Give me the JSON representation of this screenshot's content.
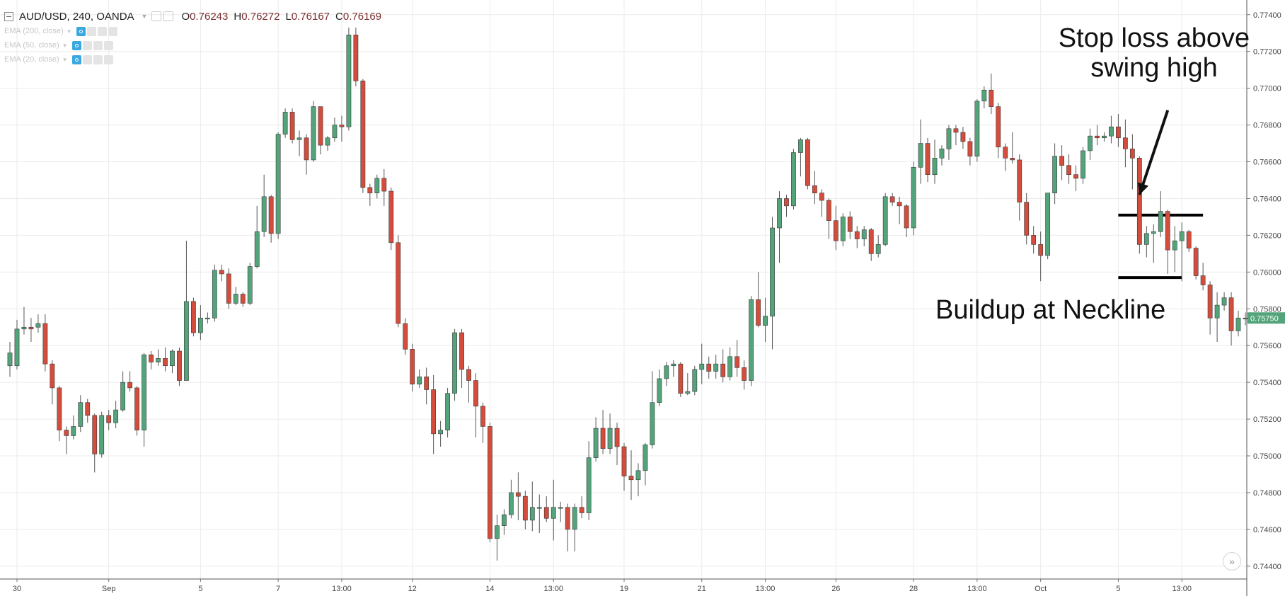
{
  "header": {
    "symbol": "AUD/USD, 240, OANDA",
    "open_label": "O",
    "open": "0.76243",
    "high_label": "H",
    "high": "0.76272",
    "low_label": "L",
    "low": "0.76167",
    "close_label": "C",
    "close": "0.76169"
  },
  "studies": [
    {
      "label": "EMA (200, close)"
    },
    {
      "label": "EMA (50, close)"
    },
    {
      "label": "EMA (20, close)"
    }
  ],
  "annotations": {
    "stop_loss": "Stop loss above swing high",
    "buildup": "Buildup at Neckline"
  },
  "price_badge": "0.75750",
  "scroll_button": "»",
  "colors": {
    "up": "#53a47b",
    "down": "#d34c3c",
    "wick": "#555555",
    "grid": "#ebebeb",
    "badge": "#53a47b"
  },
  "chart_data": {
    "type": "candlestick",
    "title": "AUD/USD, 240, OANDA",
    "xlabel": "",
    "ylabel": "",
    "ylim": [
      0.7433,
      0.7748
    ],
    "y_ticks": [
      "0.77400",
      "0.77200",
      "0.77000",
      "0.76800",
      "0.76600",
      "0.76400",
      "0.76200",
      "0.76000",
      "0.75800",
      "0.75600",
      "0.75400",
      "0.75200",
      "0.75000",
      "0.74800",
      "0.74600",
      "0.74400"
    ],
    "x_ticks": [
      {
        "label": "30",
        "index": 1
      },
      {
        "label": "Sep",
        "index": 14
      },
      {
        "label": "5",
        "index": 27
      },
      {
        "label": "7",
        "index": 38
      },
      {
        "label": "13:00",
        "index": 47
      },
      {
        "label": "12",
        "index": 57
      },
      {
        "label": "14",
        "index": 68
      },
      {
        "label": "13:00",
        "index": 77
      },
      {
        "label": "19",
        "index": 87
      },
      {
        "label": "21",
        "index": 98
      },
      {
        "label": "13:00",
        "index": 107
      },
      {
        "label": "26",
        "index": 117
      },
      {
        "label": "28",
        "index": 128
      },
      {
        "label": "13:00",
        "index": 137
      },
      {
        "label": "Oct",
        "index": 146
      },
      {
        "label": "5",
        "index": 157
      },
      {
        "label": "13:00",
        "index": 166
      }
    ],
    "grid": true,
    "levels": [
      {
        "value": 0.7631,
        "from_index": 157,
        "to_index": 169
      },
      {
        "value": 0.7597,
        "from_index": 157,
        "to_index": 166
      }
    ],
    "arrow": {
      "from_index": 164,
      "from_value": 0.7688,
      "to_index": 160,
      "to_value": 0.7642
    },
    "last_price": 0.7575,
    "candles": [
      [
        0.7549,
        0.7556,
        0.7543,
        0.7562
      ],
      [
        0.7549,
        0.7569,
        0.7547,
        0.7574
      ],
      [
        0.7569,
        0.757,
        0.7566,
        0.7581
      ],
      [
        0.757,
        0.7569,
        0.7562,
        0.7575
      ],
      [
        0.757,
        0.7572,
        0.7567,
        0.7577
      ],
      [
        0.7572,
        0.755,
        0.7546,
        0.7577
      ],
      [
        0.755,
        0.7537,
        0.7528,
        0.7552
      ],
      [
        0.7537,
        0.7514,
        0.7508,
        0.7538
      ],
      [
        0.7514,
        0.7511,
        0.7501,
        0.7516
      ],
      [
        0.7511,
        0.7516,
        0.7509,
        0.7522
      ],
      [
        0.7516,
        0.7529,
        0.7513,
        0.7533
      ],
      [
        0.7529,
        0.7522,
        0.7518,
        0.7531
      ],
      [
        0.7522,
        0.7501,
        0.7491,
        0.7523
      ],
      [
        0.7501,
        0.7522,
        0.7499,
        0.7524
      ],
      [
        0.7522,
        0.7518,
        0.7514,
        0.7525
      ],
      [
        0.7518,
        0.7525,
        0.7515,
        0.753
      ],
      [
        0.7525,
        0.754,
        0.7524,
        0.7546
      ],
      [
        0.754,
        0.7537,
        0.7535,
        0.7546
      ],
      [
        0.7537,
        0.7514,
        0.7511,
        0.7538
      ],
      [
        0.7514,
        0.7555,
        0.7505,
        0.7556
      ],
      [
        0.7555,
        0.7551,
        0.7547,
        0.7557
      ],
      [
        0.7551,
        0.7553,
        0.7549,
        0.7558
      ],
      [
        0.7553,
        0.7549,
        0.7546,
        0.7559
      ],
      [
        0.7549,
        0.7557,
        0.7545,
        0.7558
      ],
      [
        0.7557,
        0.7541,
        0.7538,
        0.7559
      ],
      [
        0.7541,
        0.7584,
        0.7541,
        0.7617
      ],
      [
        0.7584,
        0.7567,
        0.7565,
        0.7586
      ],
      [
        0.7567,
        0.7575,
        0.7563,
        0.7582
      ],
      [
        0.7575,
        0.7575,
        0.7572,
        0.7578
      ],
      [
        0.7575,
        0.7601,
        0.7573,
        0.7604
      ],
      [
        0.7601,
        0.7599,
        0.7595,
        0.7604
      ],
      [
        0.7599,
        0.7583,
        0.758,
        0.7602
      ],
      [
        0.7583,
        0.7588,
        0.7582,
        0.7592
      ],
      [
        0.7588,
        0.7583,
        0.7581,
        0.7589
      ],
      [
        0.7583,
        0.7603,
        0.7582,
        0.7605
      ],
      [
        0.7603,
        0.7622,
        0.7602,
        0.7636
      ],
      [
        0.7622,
        0.7641,
        0.7619,
        0.7653
      ],
      [
        0.7641,
        0.7621,
        0.7616,
        0.7642
      ],
      [
        0.7621,
        0.7675,
        0.7618,
        0.7676
      ],
      [
        0.7675,
        0.7687,
        0.7673,
        0.7689
      ],
      [
        0.7687,
        0.7672,
        0.767,
        0.7689
      ],
      [
        0.7672,
        0.7673,
        0.7663,
        0.7677
      ],
      [
        0.7673,
        0.7661,
        0.7653,
        0.7675
      ],
      [
        0.7661,
        0.769,
        0.766,
        0.7693
      ],
      [
        0.769,
        0.7669,
        0.7664,
        0.7689
      ],
      [
        0.7669,
        0.7673,
        0.7666,
        0.7674
      ],
      [
        0.7673,
        0.768,
        0.7671,
        0.7684
      ],
      [
        0.768,
        0.7679,
        0.7671,
        0.7685
      ],
      [
        0.7679,
        0.7729,
        0.7677,
        0.7733
      ],
      [
        0.7729,
        0.7704,
        0.7701,
        0.7733
      ],
      [
        0.7704,
        0.7646,
        0.7643,
        0.7705
      ],
      [
        0.7646,
        0.7643,
        0.7636,
        0.7648
      ],
      [
        0.7643,
        0.7651,
        0.764,
        0.7653
      ],
      [
        0.7651,
        0.7644,
        0.7636,
        0.7656
      ],
      [
        0.7644,
        0.7616,
        0.7612,
        0.7646
      ],
      [
        0.7616,
        0.7572,
        0.757,
        0.762
      ],
      [
        0.7572,
        0.7558,
        0.7555,
        0.7575
      ],
      [
        0.7558,
        0.7539,
        0.7535,
        0.7561
      ],
      [
        0.7539,
        0.7543,
        0.7537,
        0.7547
      ],
      [
        0.7543,
        0.7536,
        0.7528,
        0.7548
      ],
      [
        0.7536,
        0.7512,
        0.7501,
        0.7544
      ],
      [
        0.7512,
        0.7514,
        0.7505,
        0.7519
      ],
      [
        0.7514,
        0.7534,
        0.751,
        0.7537
      ],
      [
        0.7534,
        0.7567,
        0.753,
        0.7569
      ],
      [
        0.7567,
        0.7547,
        0.7537,
        0.7569
      ],
      [
        0.7547,
        0.7541,
        0.7529,
        0.7549
      ],
      [
        0.7541,
        0.7527,
        0.751,
        0.7545
      ],
      [
        0.7527,
        0.7516,
        0.7507,
        0.7529
      ],
      [
        0.7516,
        0.7455,
        0.7453,
        0.7518
      ],
      [
        0.7455,
        0.7462,
        0.7443,
        0.7468
      ],
      [
        0.7462,
        0.7468,
        0.7457,
        0.7471
      ],
      [
        0.7468,
        0.748,
        0.7466,
        0.7487
      ],
      [
        0.748,
        0.7478,
        0.7465,
        0.7491
      ],
      [
        0.7478,
        0.7465,
        0.746,
        0.7481
      ],
      [
        0.7465,
        0.7472,
        0.7459,
        0.7486
      ],
      [
        0.7472,
        0.7472,
        0.7458,
        0.7479
      ],
      [
        0.7472,
        0.7466,
        0.7464,
        0.7478
      ],
      [
        0.7466,
        0.7472,
        0.7454,
        0.7487
      ],
      [
        0.7472,
        0.7472,
        0.7464,
        0.7475
      ],
      [
        0.7472,
        0.746,
        0.7448,
        0.7474
      ],
      [
        0.746,
        0.7472,
        0.7448,
        0.7474
      ],
      [
        0.7472,
        0.7469,
        0.7466,
        0.7478
      ],
      [
        0.7469,
        0.7499,
        0.7465,
        0.7508
      ],
      [
        0.7499,
        0.7515,
        0.7497,
        0.7521
      ],
      [
        0.7515,
        0.7504,
        0.7501,
        0.7525
      ],
      [
        0.7504,
        0.7515,
        0.7501,
        0.7523
      ],
      [
        0.7515,
        0.7505,
        0.7495,
        0.7518
      ],
      [
        0.7505,
        0.7489,
        0.7481,
        0.7507
      ],
      [
        0.7489,
        0.7487,
        0.7476,
        0.7503
      ],
      [
        0.7487,
        0.7492,
        0.7478,
        0.7496
      ],
      [
        0.7492,
        0.7506,
        0.7484,
        0.7507
      ],
      [
        0.7506,
        0.7529,
        0.7504,
        0.7546
      ],
      [
        0.7529,
        0.7542,
        0.7527,
        0.7547
      ],
      [
        0.7542,
        0.7549,
        0.7538,
        0.7551
      ],
      [
        0.7549,
        0.755,
        0.7543,
        0.7552
      ],
      [
        0.755,
        0.7534,
        0.7532,
        0.7551
      ],
      [
        0.7534,
        0.7535,
        0.7533,
        0.7545
      ],
      [
        0.7535,
        0.7547,
        0.7533,
        0.7549
      ],
      [
        0.7547,
        0.755,
        0.7539,
        0.7561
      ],
      [
        0.755,
        0.7546,
        0.7542,
        0.7554
      ],
      [
        0.7546,
        0.755,
        0.7542,
        0.7555
      ],
      [
        0.755,
        0.7543,
        0.754,
        0.7558
      ],
      [
        0.7543,
        0.7554,
        0.7541,
        0.7559
      ],
      [
        0.7554,
        0.7548,
        0.7543,
        0.7563
      ],
      [
        0.7548,
        0.7541,
        0.7536,
        0.7552
      ],
      [
        0.7541,
        0.7585,
        0.7538,
        0.7587
      ],
      [
        0.7585,
        0.7571,
        0.757,
        0.76
      ],
      [
        0.7571,
        0.7576,
        0.7562,
        0.7586
      ],
      [
        0.7576,
        0.7624,
        0.7558,
        0.763
      ],
      [
        0.7624,
        0.764,
        0.7605,
        0.7644
      ],
      [
        0.764,
        0.7636,
        0.763,
        0.7642
      ],
      [
        0.7636,
        0.7665,
        0.7634,
        0.7667
      ],
      [
        0.7665,
        0.7672,
        0.7652,
        0.7673
      ],
      [
        0.7672,
        0.7647,
        0.7645,
        0.7673
      ],
      [
        0.7647,
        0.7643,
        0.7637,
        0.7655
      ],
      [
        0.7643,
        0.7639,
        0.763,
        0.7645
      ],
      [
        0.7639,
        0.7628,
        0.7618,
        0.764
      ],
      [
        0.7628,
        0.7617,
        0.7612,
        0.7636
      ],
      [
        0.7617,
        0.763,
        0.7614,
        0.7632
      ],
      [
        0.763,
        0.7622,
        0.7618,
        0.7633
      ],
      [
        0.7622,
        0.7618,
        0.7613,
        0.7625
      ],
      [
        0.7618,
        0.7623,
        0.7614,
        0.7625
      ],
      [
        0.7623,
        0.761,
        0.7606,
        0.7624
      ],
      [
        0.761,
        0.7615,
        0.7608,
        0.762
      ],
      [
        0.7615,
        0.7641,
        0.7614,
        0.7643
      ],
      [
        0.7641,
        0.7638,
        0.7636,
        0.7643
      ],
      [
        0.7638,
        0.7636,
        0.7626,
        0.7641
      ],
      [
        0.7636,
        0.7624,
        0.7619,
        0.7637
      ],
      [
        0.7624,
        0.7657,
        0.762,
        0.766
      ],
      [
        0.7657,
        0.767,
        0.7648,
        0.7683
      ],
      [
        0.767,
        0.7653,
        0.7649,
        0.7673
      ],
      [
        0.7653,
        0.7662,
        0.7648,
        0.7672
      ],
      [
        0.7662,
        0.7667,
        0.7658,
        0.7669
      ],
      [
        0.7667,
        0.7678,
        0.7661,
        0.768
      ],
      [
        0.7678,
        0.7676,
        0.7669,
        0.768
      ],
      [
        0.7676,
        0.7671,
        0.7667,
        0.7679
      ],
      [
        0.7671,
        0.7663,
        0.7658,
        0.7673
      ],
      [
        0.7663,
        0.7693,
        0.766,
        0.7694
      ],
      [
        0.7693,
        0.7699,
        0.7689,
        0.7701
      ],
      [
        0.7699,
        0.769,
        0.7686,
        0.7708
      ],
      [
        0.769,
        0.7668,
        0.7662,
        0.7692
      ],
      [
        0.7668,
        0.7662,
        0.7655,
        0.767
      ],
      [
        0.7662,
        0.7661,
        0.7659,
        0.7676
      ],
      [
        0.7661,
        0.7638,
        0.7628,
        0.7664
      ],
      [
        0.7638,
        0.762,
        0.7615,
        0.7643
      ],
      [
        0.762,
        0.7615,
        0.761,
        0.7625
      ],
      [
        0.7615,
        0.7609,
        0.7595,
        0.7622
      ],
      [
        0.7609,
        0.7643,
        0.7607,
        0.7643
      ],
      [
        0.7643,
        0.7663,
        0.7637,
        0.767
      ],
      [
        0.7663,
        0.7658,
        0.765,
        0.7669
      ],
      [
        0.7658,
        0.7653,
        0.7648,
        0.7664
      ],
      [
        0.7653,
        0.7651,
        0.7644,
        0.7658
      ],
      [
        0.7651,
        0.7666,
        0.7648,
        0.7668
      ],
      [
        0.7666,
        0.7674,
        0.7661,
        0.7678
      ],
      [
        0.7674,
        0.7673,
        0.7669,
        0.768
      ],
      [
        0.7673,
        0.7674,
        0.7671,
        0.7676
      ],
      [
        0.7674,
        0.7679,
        0.767,
        0.7685
      ],
      [
        0.7679,
        0.7673,
        0.7668,
        0.7686
      ],
      [
        0.7673,
        0.7667,
        0.7657,
        0.7683
      ],
      [
        0.7667,
        0.7662,
        0.7645,
        0.7675
      ],
      [
        0.7662,
        0.7615,
        0.761,
        0.7663
      ],
      [
        0.7615,
        0.7621,
        0.7608,
        0.7625
      ],
      [
        0.7621,
        0.7622,
        0.7605,
        0.7626
      ],
      [
        0.7622,
        0.7633,
        0.7619,
        0.7644
      ],
      [
        0.7633,
        0.7612,
        0.7599,
        0.7634
      ],
      [
        0.7612,
        0.7617,
        0.76,
        0.7625
      ],
      [
        0.7617,
        0.7622,
        0.7595,
        0.7627
      ],
      [
        0.7622,
        0.7613,
        0.7611,
        0.7623
      ],
      [
        0.7613,
        0.7598,
        0.7596,
        0.7614
      ],
      [
        0.7598,
        0.7593,
        0.759,
        0.7605
      ],
      [
        0.7593,
        0.7575,
        0.7566,
        0.7595
      ],
      [
        0.7575,
        0.7582,
        0.7562,
        0.7589
      ],
      [
        0.7582,
        0.7586,
        0.7579,
        0.7589
      ],
      [
        0.7586,
        0.7568,
        0.756,
        0.7589
      ],
      [
        0.7568,
        0.7575,
        0.7565,
        0.7579
      ],
      [
        0.7575,
        0.7575,
        0.7571,
        0.7578
      ]
    ]
  }
}
